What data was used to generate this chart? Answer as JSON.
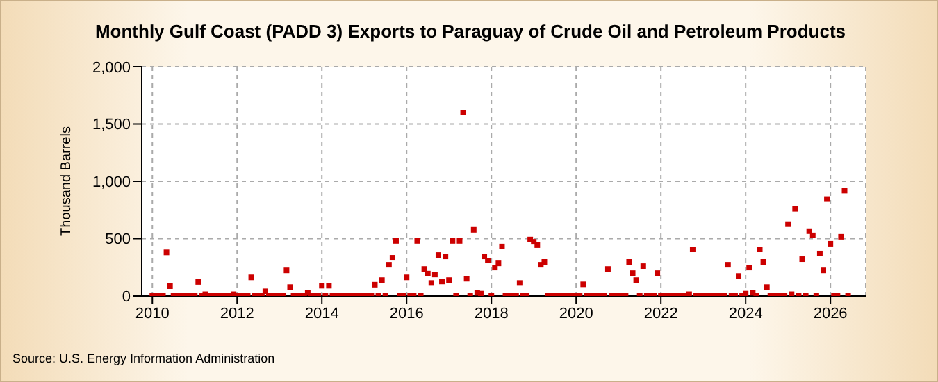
{
  "chart_data": {
    "type": "scatter",
    "title": "Monthly Gulf Coast (PADD 3) Exports to Paraguay of Crude Oil and Petroleum Products",
    "ylabel": "Thousand Barrels",
    "annotations": [
      "Source: U.S. Energy Information Administration"
    ],
    "x": [
      "2010-01",
      "2010-02",
      "2010-03",
      "2010-04",
      "2010-05",
      "2010-06",
      "2010-07",
      "2010-08",
      "2010-09",
      "2010-10",
      "2010-11",
      "2010-12",
      "2011-01",
      "2011-02",
      "2011-03",
      "2011-04",
      "2011-05",
      "2011-06",
      "2011-07",
      "2011-08",
      "2011-09",
      "2011-10",
      "2011-11",
      "2011-12",
      "2012-01",
      "2012-02",
      "2012-03",
      "2012-04",
      "2012-05",
      "2012-06",
      "2012-07",
      "2012-08",
      "2012-09",
      "2012-10",
      "2012-11",
      "2012-12",
      "2013-01",
      "2013-02",
      "2013-03",
      "2013-04",
      "2013-05",
      "2013-06",
      "2013-07",
      "2013-08",
      "2013-09",
      "2013-10",
      "2013-11",
      "2013-12",
      "2014-01",
      "2014-02",
      "2014-03",
      "2014-04",
      "2014-05",
      "2014-06",
      "2014-07",
      "2014-08",
      "2014-09",
      "2014-10",
      "2014-11",
      "2014-12",
      "2015-01",
      "2015-02",
      "2015-03",
      "2015-04",
      "2015-05",
      "2015-06",
      "2015-07",
      "2015-08",
      "2015-09",
      "2015-10",
      "2015-11",
      "2015-12",
      "2016-01",
      "2016-02",
      "2016-03",
      "2016-04",
      "2016-05",
      "2016-06",
      "2016-07",
      "2016-08",
      "2016-09",
      "2016-10",
      "2016-11",
      "2016-12",
      "2017-01",
      "2017-02",
      "2017-03",
      "2017-04",
      "2017-05",
      "2017-06",
      "2017-07",
      "2017-08",
      "2017-09",
      "2017-10",
      "2017-11",
      "2017-12",
      "2018-01",
      "2018-02",
      "2018-03",
      "2018-04",
      "2018-05",
      "2018-06",
      "2018-07",
      "2018-08",
      "2018-09",
      "2018-10",
      "2018-11",
      "2018-12",
      "2019-01",
      "2019-02",
      "2019-03",
      "2019-04",
      "2019-05",
      "2019-06",
      "2019-07",
      "2019-08",
      "2019-09",
      "2019-10",
      "2019-11",
      "2019-12",
      "2020-01",
      "2020-02",
      "2020-03",
      "2020-04",
      "2020-05",
      "2020-06",
      "2020-07",
      "2020-08",
      "2020-09",
      "2020-10",
      "2020-11",
      "2020-12",
      "2021-01",
      "2021-02",
      "2021-03",
      "2021-04",
      "2021-05",
      "2021-06",
      "2021-07",
      "2021-08",
      "2021-09",
      "2021-10",
      "2021-11",
      "2021-12",
      "2022-01",
      "2022-02",
      "2022-03",
      "2022-04",
      "2022-05",
      "2022-06",
      "2022-07",
      "2022-08",
      "2022-09",
      "2022-10",
      "2022-11",
      "2022-12",
      "2023-01",
      "2023-02",
      "2023-03",
      "2023-04",
      "2023-05",
      "2023-06",
      "2023-07",
      "2023-08",
      "2023-09",
      "2023-10",
      "2023-11",
      "2023-12",
      "2024-01",
      "2024-02",
      "2024-03",
      "2024-04",
      "2024-05",
      "2024-06",
      "2024-07",
      "2024-08",
      "2024-09",
      "2024-10",
      "2024-11",
      "2024-12",
      "2025-01",
      "2025-02",
      "2025-03",
      "2025-04",
      "2025-05",
      "2025-06",
      "2025-07",
      "2025-08",
      "2025-09",
      "2025-10",
      "2025-11",
      "2025-12",
      "2026-01",
      "2026-02",
      "2026-03",
      "2026-04",
      "2026-05",
      "2026-06"
    ],
    "series": [
      {
        "color": "#cc0000",
        "values": [
          0,
          0,
          0,
          0,
          380,
          85,
          0,
          0,
          0,
          0,
          0,
          0,
          0,
          122,
          0,
          15,
          0,
          0,
          0,
          0,
          0,
          0,
          0,
          15,
          0,
          0,
          0,
          0,
          162,
          0,
          0,
          0,
          40,
          0,
          0,
          0,
          0,
          0,
          223,
          77,
          0,
          0,
          0,
          0,
          28,
          0,
          0,
          0,
          89,
          0,
          89,
          0,
          0,
          0,
          0,
          0,
          0,
          0,
          0,
          0,
          0,
          0,
          0,
          98,
          0,
          138,
          0,
          272,
          333,
          480,
          0,
          0,
          162,
          0,
          0,
          480,
          0,
          235,
          195,
          113,
          187,
          357,
          126,
          345,
          138,
          480,
          0,
          480,
          1600,
          150,
          0,
          577,
          28,
          20,
          345,
          309,
          0,
          248,
          284,
          431,
          0,
          0,
          0,
          0,
          113,
          0,
          0,
          492,
          472,
          443,
          272,
          297,
          0,
          0,
          0,
          0,
          0,
          0,
          0,
          0,
          0,
          0,
          101,
          0,
          0,
          0,
          0,
          0,
          0,
          235,
          0,
          0,
          0,
          0,
          0,
          297,
          199,
          138,
          0,
          260,
          0,
          0,
          0,
          199,
          0,
          0,
          0,
          0,
          0,
          0,
          0,
          0,
          15,
          406,
          0,
          0,
          0,
          0,
          0,
          0,
          0,
          0,
          0,
          272,
          0,
          0,
          174,
          0,
          20,
          248,
          28,
          0,
          406,
          297,
          77,
          0,
          0,
          0,
          0,
          0,
          626,
          15,
          760,
          0,
          321,
          0,
          565,
          528,
          0,
          370,
          223,
          845,
          455,
          0,
          0,
          516,
          919,
          0
        ]
      }
    ],
    "xlim": [
      "2009-10",
      "2026-11"
    ],
    "xticks": [
      "2010",
      "2012",
      "2014",
      "2016",
      "2018",
      "2020",
      "2022",
      "2024",
      "2026"
    ],
    "ylim": [
      0,
      2000
    ],
    "yticks": [
      0,
      500,
      {
        "value": 1000,
        "label": "1,000"
      },
      {
        "value": 1500,
        "label": "1,500"
      },
      {
        "value": 2000,
        "label": "2,000"
      }
    ],
    "grid": true,
    "marker": "square"
  }
}
